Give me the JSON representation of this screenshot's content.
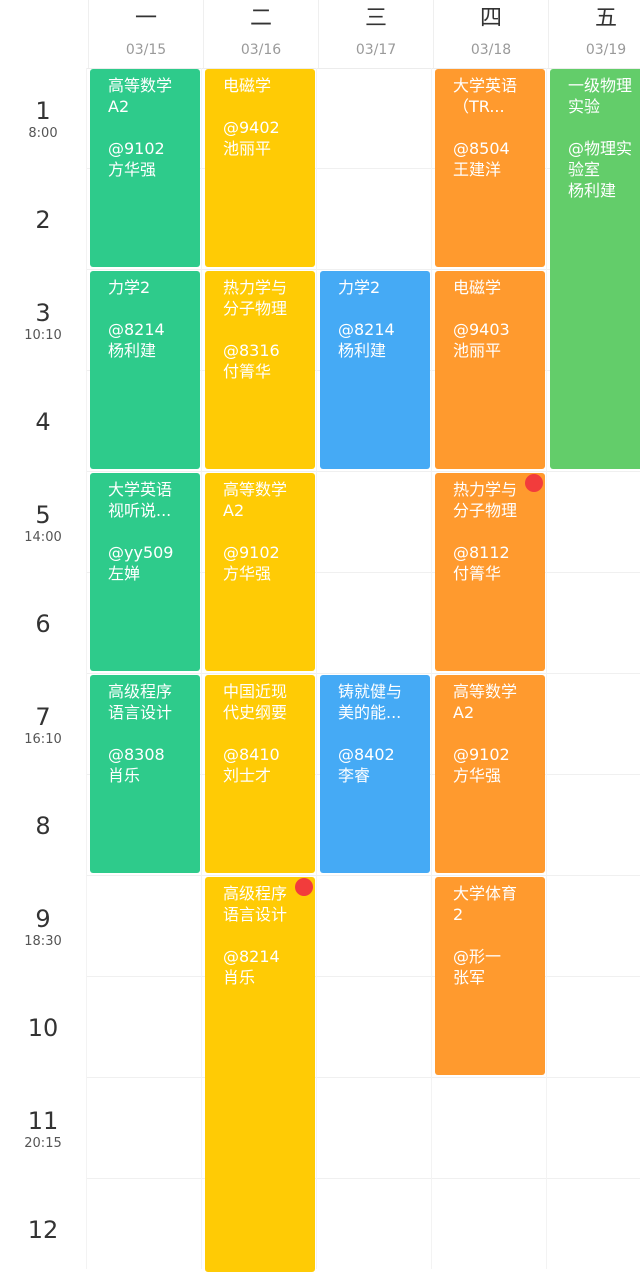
{
  "colors": {
    "green": "#2ecb8b",
    "yellow": "#ffcb05",
    "blue": "#45aaf5",
    "orange": "#ff9a2e",
    "light_green": "#63cd6a",
    "red_dot": "#f23c3c"
  },
  "header": {
    "days": [
      {
        "name": "一",
        "date": "03/15"
      },
      {
        "name": "二",
        "date": "03/16"
      },
      {
        "name": "三",
        "date": "03/17"
      },
      {
        "name": "四",
        "date": "03/18"
      },
      {
        "name": "五",
        "date": "03/19"
      }
    ]
  },
  "periods": [
    {
      "num": "1",
      "time": "8:00"
    },
    {
      "num": "2",
      "time": ""
    },
    {
      "num": "3",
      "time": "10:10"
    },
    {
      "num": "4",
      "time": ""
    },
    {
      "num": "5",
      "time": "14:00"
    },
    {
      "num": "6",
      "time": ""
    },
    {
      "num": "7",
      "time": "16:10"
    },
    {
      "num": "8",
      "time": ""
    },
    {
      "num": "9",
      "time": "18:30"
    },
    {
      "num": "10",
      "time": ""
    },
    {
      "num": "11",
      "time": "20:15"
    },
    {
      "num": "12",
      "time": ""
    }
  ],
  "courses": [
    {
      "day": 0,
      "start": 1,
      "span": 2,
      "color": "green",
      "name": "高等数学\nA2",
      "room": "@9102",
      "teacher": "方华强"
    },
    {
      "day": 0,
      "start": 3,
      "span": 2,
      "color": "green",
      "name": "力学2",
      "room": "@8214",
      "teacher": "杨利建"
    },
    {
      "day": 0,
      "start": 5,
      "span": 2,
      "color": "green",
      "name": "大学英语\n视听说...",
      "room": "@yy509",
      "teacher": "左婵"
    },
    {
      "day": 0,
      "start": 7,
      "span": 2,
      "color": "green",
      "name": "高级程序\n语言设计",
      "room": "@8308",
      "teacher": "肖乐"
    },
    {
      "day": 1,
      "start": 1,
      "span": 2,
      "color": "yellow",
      "name": "电磁学",
      "room": "@9402",
      "teacher": "池丽平"
    },
    {
      "day": 1,
      "start": 3,
      "span": 2,
      "color": "yellow",
      "name": "热力学与\n分子物理",
      "room": "@8316",
      "teacher": "付箐华"
    },
    {
      "day": 1,
      "start": 5,
      "span": 2,
      "color": "yellow",
      "name": "高等数学\nA2",
      "room": "@9102",
      "teacher": "方华强"
    },
    {
      "day": 1,
      "start": 7,
      "span": 2,
      "color": "yellow",
      "name": "中国近现\n代史纲要",
      "room": "@8410",
      "teacher": "刘士才"
    },
    {
      "day": 1,
      "start": 9,
      "span": 4,
      "color": "yellow",
      "name": "高级程序\n语言设计",
      "room": "@8214",
      "teacher": "肖乐",
      "dot": true
    },
    {
      "day": 2,
      "start": 3,
      "span": 2,
      "color": "blue",
      "name": "力学2",
      "room": "@8214",
      "teacher": "杨利建"
    },
    {
      "day": 2,
      "start": 7,
      "span": 2,
      "color": "blue",
      "name": "铸就健与\n美的能...",
      "room": "@8402",
      "teacher": "李睿"
    },
    {
      "day": 3,
      "start": 1,
      "span": 2,
      "color": "orange",
      "name": "大学英语\n（TR...",
      "room": "@8504",
      "teacher": "王建洋"
    },
    {
      "day": 3,
      "start": 3,
      "span": 2,
      "color": "orange",
      "name": "电磁学",
      "room": "@9403",
      "teacher": "池丽平"
    },
    {
      "day": 3,
      "start": 5,
      "span": 2,
      "color": "orange",
      "name": "热力学与\n分子物理",
      "room": "@8112",
      "teacher": "付箐华",
      "dot": true
    },
    {
      "day": 3,
      "start": 7,
      "span": 2,
      "color": "orange",
      "name": "高等数学\nA2",
      "room": "@9102",
      "teacher": "方华强"
    },
    {
      "day": 3,
      "start": 9,
      "span": 2,
      "color": "orange",
      "name": "大学体育\n2",
      "room": "@形一",
      "teacher": "张军"
    },
    {
      "day": 4,
      "start": 1,
      "span": 4,
      "color": "light_green",
      "name": "一级物理\n实验",
      "room": "@物理实\n验室",
      "teacher": "杨利建"
    }
  ]
}
